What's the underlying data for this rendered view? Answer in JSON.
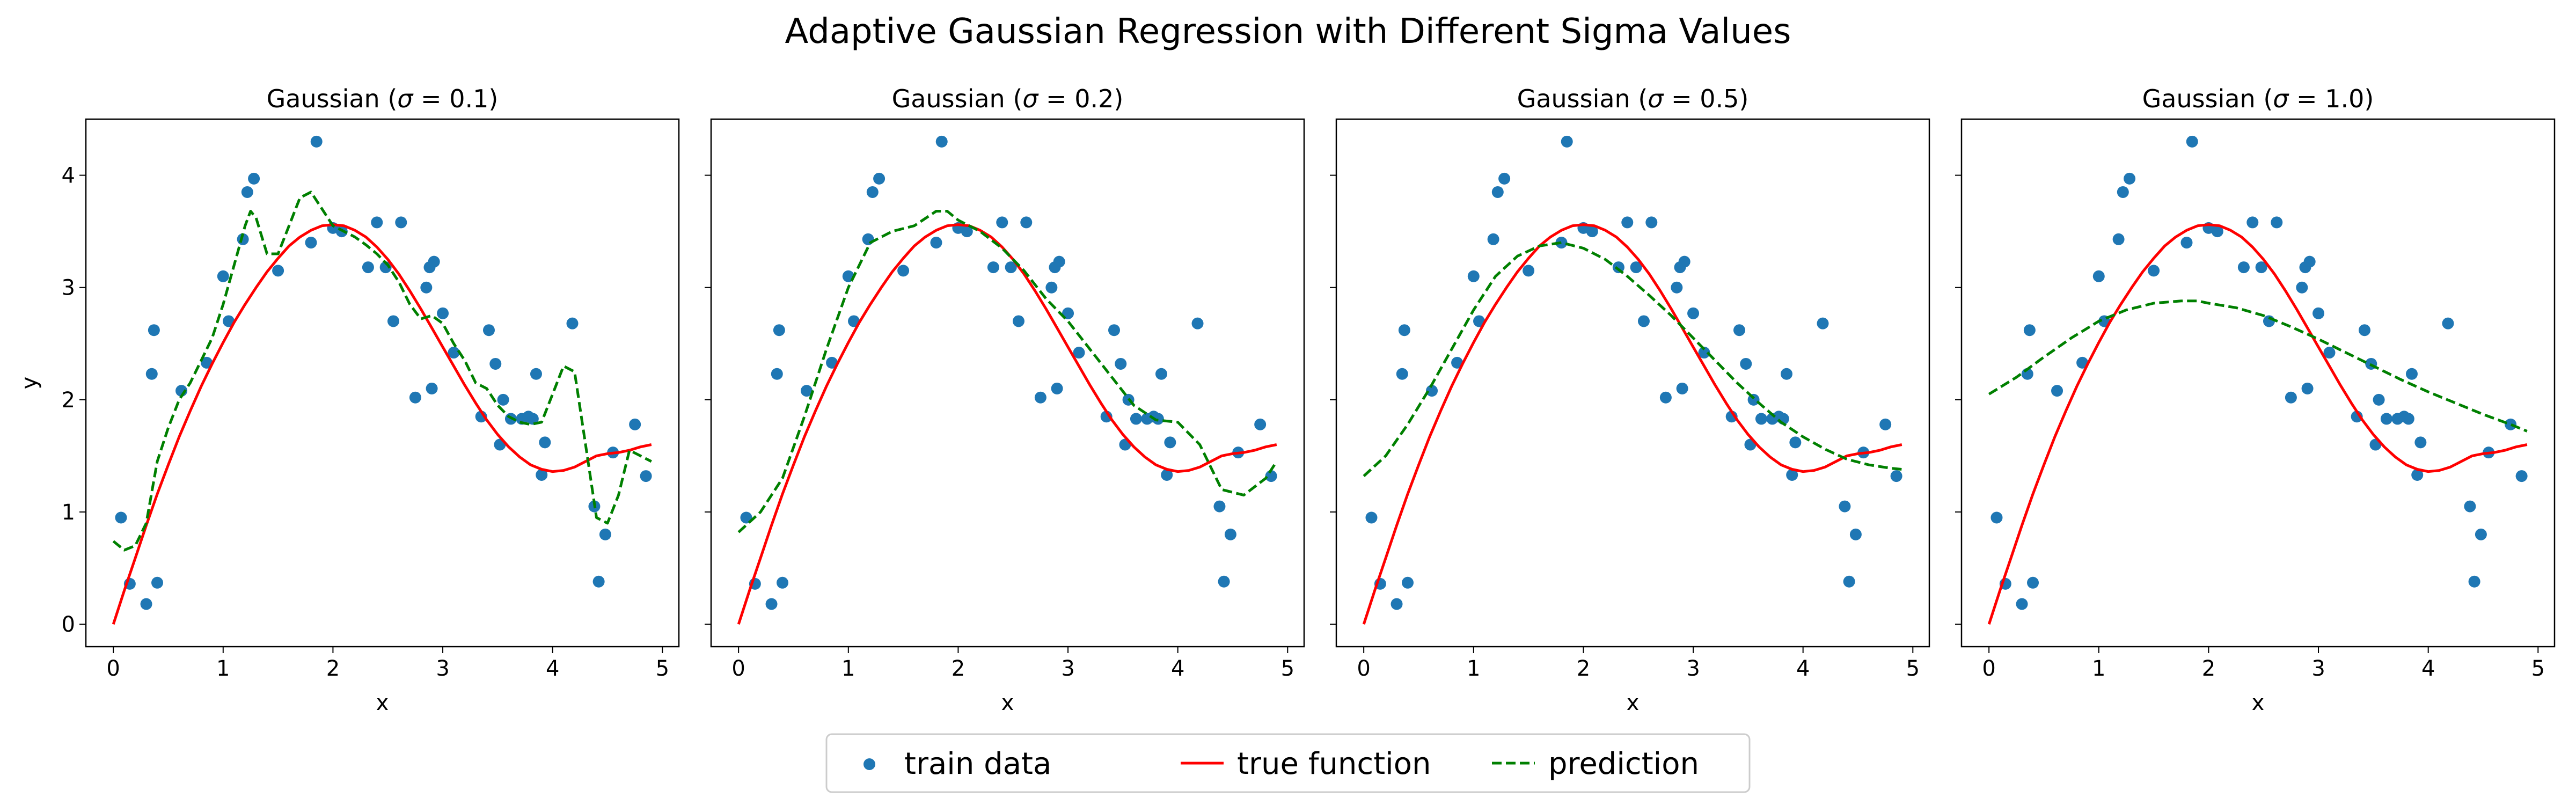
{
  "figure": {
    "title": "Adaptive Gaussian Regression with Different Sigma Values"
  },
  "legend": {
    "items": [
      {
        "label": "train data",
        "kind": "marker",
        "color": "#1f77b4"
      },
      {
        "label": "true function",
        "kind": "line",
        "color": "#ff0000"
      },
      {
        "label": "prediction",
        "kind": "dashed",
        "color": "#008000"
      }
    ],
    "placement": "bottom-center"
  },
  "chart_data": [
    {
      "type": "scatter+line",
      "title_prefix": "Gaussian (",
      "sigma_symbol": "σ",
      "title_suffix": " = 0.1)",
      "xlabel": "x",
      "ylabel": "y",
      "xlim": [
        -0.25,
        5.15
      ],
      "ylim": [
        -0.2,
        4.5
      ],
      "xticks": [
        0,
        1,
        2,
        3,
        4,
        5
      ],
      "yticks": [
        0,
        1,
        2,
        3,
        4
      ],
      "show_yticklabels": true,
      "grid": false,
      "prediction": {
        "x": [
          0,
          0.1,
          0.2,
          0.3,
          0.4,
          0.5,
          0.6,
          0.7,
          0.8,
          0.9,
          1.0,
          1.1,
          1.2,
          1.25,
          1.3,
          1.4,
          1.5,
          1.6,
          1.7,
          1.8,
          1.9,
          2.0,
          2.1,
          2.2,
          2.3,
          2.4,
          2.5,
          2.6,
          2.7,
          2.8,
          2.9,
          3.0,
          3.1,
          3.2,
          3.3,
          3.4,
          3.5,
          3.6,
          3.7,
          3.8,
          3.9,
          4.0,
          4.1,
          4.2,
          4.3,
          4.4,
          4.5,
          4.6,
          4.7,
          4.8,
          4.9
        ],
        "y": [
          0.74,
          0.66,
          0.7,
          0.9,
          1.45,
          1.75,
          2.0,
          2.15,
          2.35,
          2.55,
          2.85,
          3.2,
          3.55,
          3.68,
          3.62,
          3.3,
          3.3,
          3.55,
          3.8,
          3.85,
          3.7,
          3.55,
          3.5,
          3.45,
          3.38,
          3.3,
          3.2,
          3.05,
          2.85,
          2.72,
          2.75,
          2.68,
          2.5,
          2.35,
          2.15,
          2.1,
          1.95,
          1.85,
          1.8,
          1.78,
          1.8,
          2.05,
          2.3,
          2.25,
          1.6,
          0.95,
          0.9,
          1.15,
          1.55,
          1.5,
          1.45
        ]
      }
    },
    {
      "type": "scatter+line",
      "title_prefix": "Gaussian (",
      "sigma_symbol": "σ",
      "title_suffix": " = 0.2)",
      "xlabel": "x",
      "ylabel": "",
      "xlim": [
        -0.25,
        5.15
      ],
      "ylim": [
        -0.2,
        4.5
      ],
      "xticks": [
        0,
        1,
        2,
        3,
        4,
        5
      ],
      "yticks": [
        0,
        1,
        2,
        3,
        4
      ],
      "show_yticklabels": false,
      "grid": false,
      "prediction": {
        "x": [
          0,
          0.2,
          0.4,
          0.6,
          0.8,
          1.0,
          1.2,
          1.4,
          1.6,
          1.8,
          1.9,
          2.0,
          2.2,
          2.4,
          2.6,
          2.8,
          3.0,
          3.2,
          3.4,
          3.6,
          3.8,
          4.0,
          4.2,
          4.4,
          4.6,
          4.8,
          4.9
        ],
        "y": [
          0.82,
          1.0,
          1.3,
          1.85,
          2.45,
          3.0,
          3.4,
          3.5,
          3.55,
          3.68,
          3.68,
          3.6,
          3.5,
          3.35,
          3.15,
          2.9,
          2.7,
          2.45,
          2.2,
          1.95,
          1.82,
          1.8,
          1.6,
          1.2,
          1.15,
          1.3,
          1.45
        ]
      }
    },
    {
      "type": "scatter+line",
      "title_prefix": "Gaussian (",
      "sigma_symbol": "σ",
      "title_suffix": " = 0.5)",
      "xlabel": "x",
      "ylabel": "",
      "xlim": [
        -0.25,
        5.15
      ],
      "ylim": [
        -0.2,
        4.5
      ],
      "xticks": [
        0,
        1,
        2,
        3,
        4,
        5
      ],
      "yticks": [
        0,
        1,
        2,
        3,
        4
      ],
      "show_yticklabels": false,
      "grid": false,
      "prediction": {
        "x": [
          0,
          0.2,
          0.4,
          0.6,
          0.8,
          1.0,
          1.2,
          1.4,
          1.6,
          1.8,
          2.0,
          2.2,
          2.4,
          2.6,
          2.8,
          3.0,
          3.2,
          3.4,
          3.6,
          3.8,
          4.0,
          4.2,
          4.4,
          4.6,
          4.8,
          4.9
        ],
        "y": [
          1.32,
          1.5,
          1.78,
          2.1,
          2.45,
          2.8,
          3.1,
          3.28,
          3.37,
          3.4,
          3.35,
          3.25,
          3.1,
          2.93,
          2.75,
          2.55,
          2.35,
          2.15,
          1.97,
          1.8,
          1.67,
          1.56,
          1.47,
          1.42,
          1.39,
          1.38
        ]
      }
    },
    {
      "type": "scatter+line",
      "title_prefix": "Gaussian (",
      "sigma_symbol": "σ",
      "title_suffix": " = 1.0)",
      "xlabel": "x",
      "ylabel": "",
      "xlim": [
        -0.25,
        5.15
      ],
      "ylim": [
        -0.2,
        4.5
      ],
      "xticks": [
        0,
        1,
        2,
        3,
        4,
        5
      ],
      "yticks": [
        0,
        1,
        2,
        3,
        4
      ],
      "show_yticklabels": false,
      "grid": false,
      "prediction": {
        "x": [
          0,
          0.25,
          0.5,
          0.75,
          1.0,
          1.25,
          1.5,
          1.75,
          1.9,
          2.0,
          2.25,
          2.5,
          2.75,
          3.0,
          3.25,
          3.5,
          3.75,
          4.0,
          4.25,
          4.5,
          4.75,
          4.9
        ],
        "y": [
          2.05,
          2.2,
          2.38,
          2.55,
          2.7,
          2.8,
          2.86,
          2.88,
          2.88,
          2.86,
          2.82,
          2.75,
          2.65,
          2.54,
          2.42,
          2.3,
          2.18,
          2.07,
          1.97,
          1.87,
          1.78,
          1.72
        ]
      }
    }
  ],
  "shared_data": {
    "train": {
      "x": [
        0.07,
        0.15,
        0.3,
        0.35,
        0.37,
        0.4,
        0.62,
        0.85,
        1.0,
        1.05,
        1.18,
        1.22,
        1.28,
        1.5,
        1.8,
        1.85,
        2.0,
        2.08,
        2.32,
        2.4,
        2.48,
        2.55,
        2.62,
        2.75,
        2.85,
        2.88,
        2.9,
        2.92,
        3.0,
        3.1,
        3.35,
        3.42,
        3.48,
        3.52,
        3.55,
        3.62,
        3.72,
        3.78,
        3.82,
        3.85,
        3.9,
        3.93,
        4.18,
        4.38,
        4.42,
        4.48,
        4.55,
        4.75,
        4.85
      ],
      "y": [
        0.95,
        0.36,
        0.18,
        2.23,
        2.62,
        0.37,
        2.08,
        2.33,
        3.1,
        2.7,
        3.43,
        3.85,
        3.97,
        3.15,
        3.4,
        4.3,
        3.53,
        3.5,
        3.18,
        3.58,
        3.18,
        2.7,
        3.58,
        2.02,
        3.0,
        3.18,
        2.1,
        3.23,
        2.77,
        2.42,
        1.85,
        2.62,
        2.32,
        1.6,
        2.0,
        1.83,
        1.83,
        1.85,
        1.83,
        2.23,
        1.33,
        1.62,
        2.68,
        1.05,
        0.38,
        0.8,
        1.53,
        1.78,
        1.32
      ]
    },
    "true_function": {
      "x": [
        0,
        0.1,
        0.2,
        0.3,
        0.4,
        0.5,
        0.6,
        0.7,
        0.8,
        0.9,
        1.0,
        1.1,
        1.2,
        1.3,
        1.4,
        1.5,
        1.6,
        1.7,
        1.8,
        1.9,
        2.0,
        2.1,
        2.2,
        2.3,
        2.4,
        2.5,
        2.6,
        2.7,
        2.8,
        2.9,
        3.0,
        3.1,
        3.2,
        3.3,
        3.4,
        3.5,
        3.6,
        3.7,
        3.8,
        3.9,
        4.0,
        4.1,
        4.2,
        4.3,
        4.4,
        4.5,
        4.6,
        4.7,
        4.8,
        4.9
      ],
      "y": [
        0.0,
        0.3,
        0.59,
        0.88,
        1.16,
        1.42,
        1.67,
        1.9,
        2.12,
        2.32,
        2.51,
        2.69,
        2.85,
        3.0,
        3.14,
        3.26,
        3.37,
        3.45,
        3.51,
        3.55,
        3.56,
        3.55,
        3.51,
        3.45,
        3.36,
        3.25,
        3.12,
        2.97,
        2.81,
        2.64,
        2.47,
        2.3,
        2.13,
        1.97,
        1.82,
        1.69,
        1.58,
        1.49,
        1.42,
        1.38,
        1.36,
        1.37,
        1.4,
        1.45,
        1.5,
        1.52,
        1.53,
        1.55,
        1.58,
        1.6
      ]
    }
  }
}
